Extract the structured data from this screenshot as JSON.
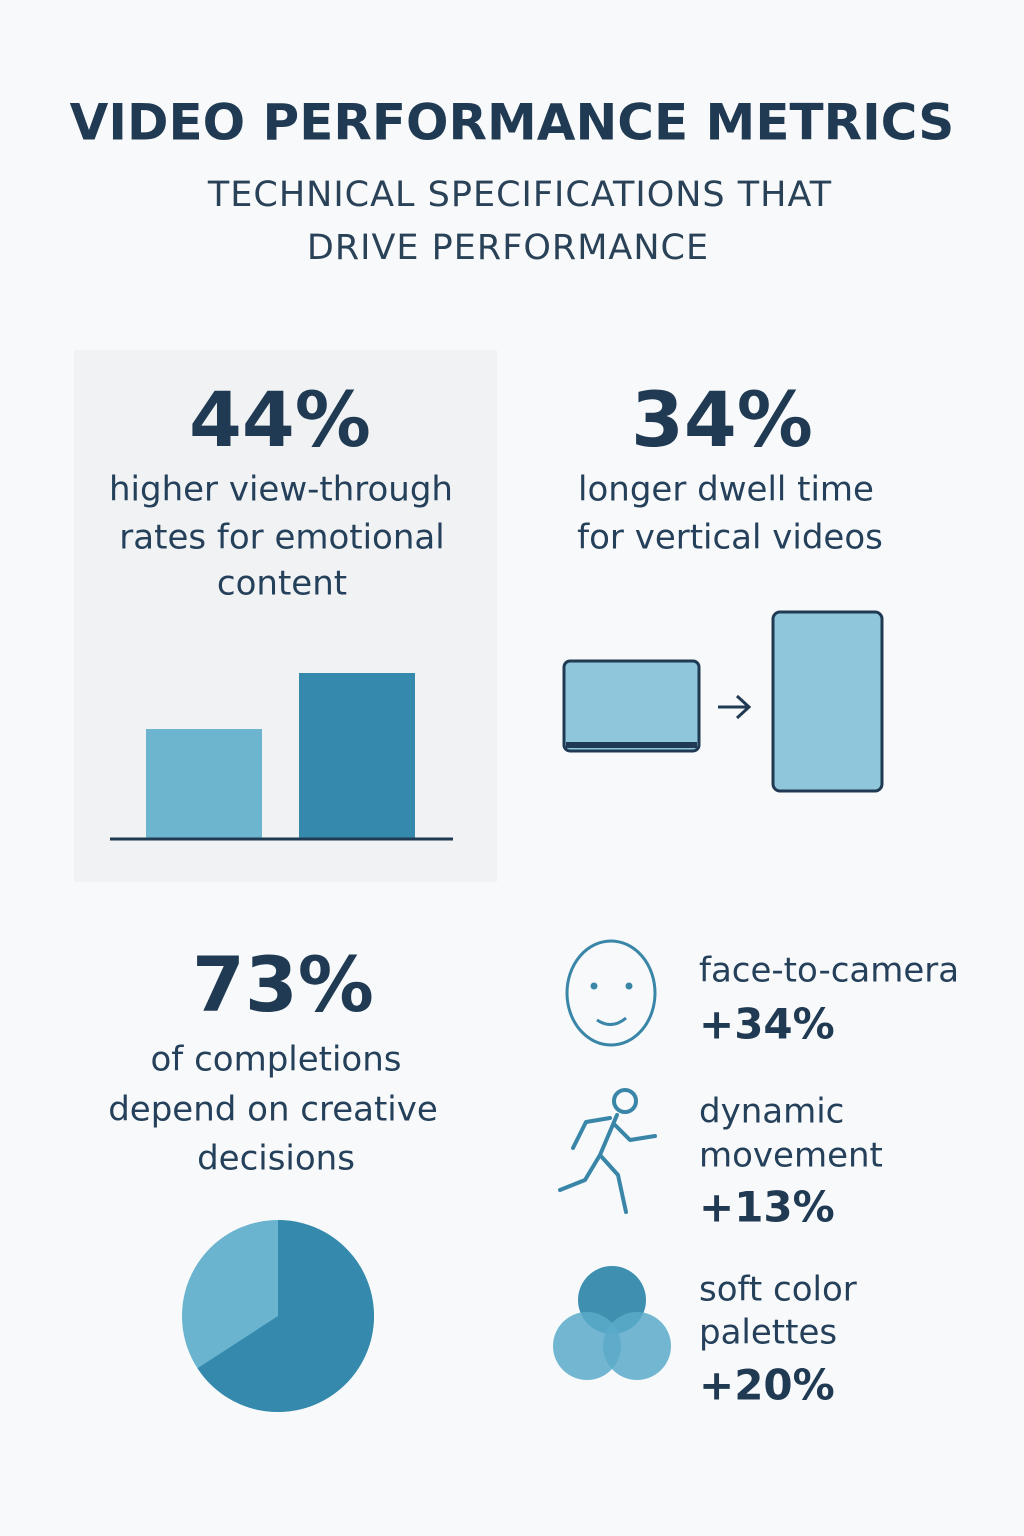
{
  "header": {
    "title": "VIDEO PERFORMANCE METRICS",
    "subtitle_lines": [
      "TECHNICAL SPECIFICATIONS THAT",
      "DRIVE PERFORMANCE"
    ]
  },
  "stats": [
    {
      "value": "44%",
      "lines": [
        "higher view-through",
        "rates for emotional",
        "content"
      ]
    },
    {
      "value": "34%",
      "lines": [
        "longer dwell time",
        "for vertical videos"
      ]
    },
    {
      "value": "73%",
      "lines": [
        "of completions",
        "depend on creative",
        "decisions"
      ]
    }
  ],
  "factors": [
    {
      "lines": [
        "face-to-camera"
      ],
      "value": "+34%"
    },
    {
      "lines": [
        "dynamic",
        "movement"
      ],
      "value": "+13%"
    },
    {
      "lines": [
        "soft color",
        "palettes"
      ],
      "value": "+20%"
    }
  ]
}
